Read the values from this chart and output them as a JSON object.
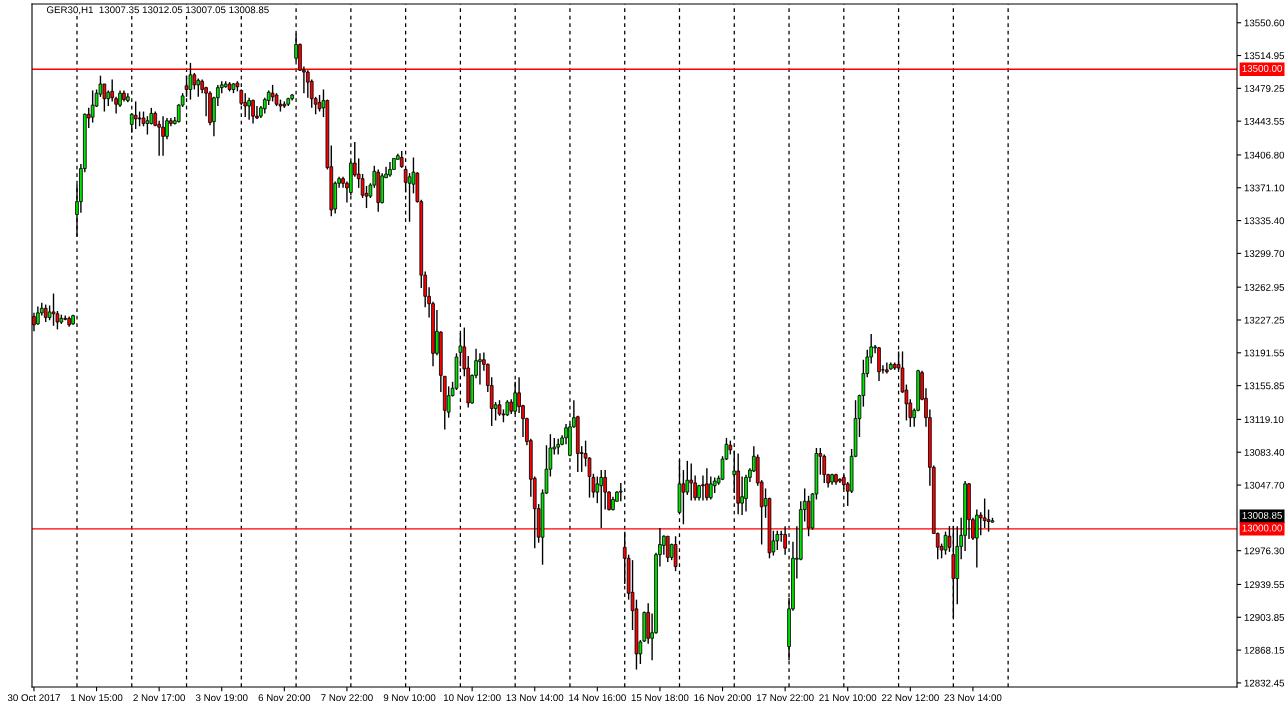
{
  "chart_data": {
    "type": "candlestick",
    "title": "GER30,H1  13007.35 13012.05 13007.05 13008.85",
    "annotations": [
      "13008.85"
    ],
    "categories": [
      "30 Oct 2017",
      null,
      null,
      null,
      null,
      null,
      null,
      null,
      null,
      null,
      null,
      null,
      null,
      null,
      null,
      null,
      "1 Nov 15:00",
      null,
      null,
      null,
      null,
      null,
      null,
      null,
      null,
      null,
      null,
      null,
      null,
      null,
      null,
      null,
      "2 Nov 17:00",
      null,
      null,
      null,
      null,
      null,
      null,
      null,
      null,
      null,
      null,
      null,
      null,
      null,
      null,
      null,
      "3 Nov 19:00",
      null,
      null,
      null,
      null,
      null,
      null,
      null,
      null,
      null,
      null,
      null,
      null,
      null,
      null,
      null,
      "6 Nov 20:00",
      null,
      null,
      null,
      null,
      null,
      null,
      null,
      null,
      null,
      null,
      null,
      null,
      null,
      null,
      null,
      "7 Nov 22:00",
      null,
      null,
      null,
      null,
      null,
      null,
      null,
      null,
      null,
      null,
      null,
      null,
      null,
      null,
      null,
      "9 Nov 10:00",
      null,
      null,
      null,
      null,
      null,
      null,
      null,
      null,
      null,
      null,
      null,
      null,
      null,
      null,
      null,
      "10 Nov 12:00",
      null,
      null,
      null,
      null,
      null,
      null,
      null,
      null,
      null,
      null,
      null,
      null,
      null,
      null,
      null,
      "13 Nov 14:00",
      null,
      null,
      null,
      null,
      null,
      null,
      null,
      null,
      null,
      null,
      null,
      null,
      null,
      null,
      null,
      "14 Nov 16:00",
      null,
      null,
      null,
      null,
      null,
      null,
      null,
      null,
      null,
      null,
      null,
      null,
      null,
      null,
      null,
      "15 Nov 18:00",
      null,
      null,
      null,
      null,
      null,
      null,
      null,
      null,
      null,
      null,
      null,
      null,
      null,
      null,
      null,
      "16 Nov 20:00",
      null,
      null,
      null,
      null,
      null,
      null,
      null,
      null,
      null,
      null,
      null,
      null,
      null,
      null,
      null,
      "17 Nov 22:00",
      null,
      null,
      null,
      null,
      null,
      null,
      null,
      null,
      null,
      null,
      null,
      null,
      null,
      null,
      null,
      "21 Nov 10:00",
      null,
      null,
      null,
      null,
      null,
      null,
      null,
      null,
      null,
      null,
      null,
      null,
      null,
      null,
      null,
      "22 Nov 12:00",
      null,
      null,
      null,
      null,
      null,
      null,
      null,
      null,
      null,
      null,
      null,
      null,
      null,
      null,
      null,
      "23 Nov 14:00",
      null,
      null,
      null,
      null,
      null,
      null,
      null,
      null,
      null,
      null,
      null,
      null,
      null,
      null,
      null,
      null,
      null,
      null,
      null,
      null,
      null,
      null,
      null,
      null,
      null,
      null,
      null,
      null,
      null,
      null,
      null,
      null,
      null,
      null,
      null,
      null,
      null,
      null,
      null,
      null,
      null,
      null,
      null,
      null,
      null,
      null,
      null,
      null,
      null,
      null,
      null,
      null,
      null,
      null,
      null,
      null,
      null,
      null,
      null,
      null,
      null,
      null,
      null,
      null,
      null,
      null,
      null
    ],
    "ohlc": [
      [
        13231,
        13235,
        13215,
        13222
      ],
      [
        13223,
        13242,
        13222,
        13235
      ],
      [
        13235,
        13246,
        13232,
        13240
      ],
      [
        13240,
        13244,
        13225,
        13230
      ],
      [
        13230,
        13243,
        13227,
        13236
      ],
      [
        13236,
        13256,
        13221,
        13234
      ],
      [
        13234,
        13237,
        13217,
        13225
      ],
      [
        13225,
        13233,
        13223,
        13229
      ],
      [
        13229,
        13232,
        13227,
        13228
      ],
      [
        13229,
        13231,
        13220,
        13222
      ],
      [
        13223,
        13233,
        13222,
        13232
      ],
      [
        13342,
        13375,
        13318,
        13356
      ],
      [
        13356,
        13397,
        13344,
        13392
      ],
      [
        13392,
        13452,
        13388,
        13451
      ],
      [
        13451,
        13458,
        13436,
        13447
      ],
      [
        13448,
        13477,
        13442,
        13461
      ],
      [
        13460,
        13478,
        13459,
        13474
      ],
      [
        13473,
        13493,
        13470,
        13484
      ],
      [
        13484,
        13484,
        13454,
        13468
      ],
      [
        13468,
        13477,
        13460,
        13475
      ],
      [
        13476,
        13489,
        13465,
        13469
      ],
      [
        13468,
        13470,
        13452,
        13462
      ],
      [
        13461,
        13477,
        13459,
        13474
      ],
      [
        13474,
        13477,
        13465,
        13467
      ],
      [
        13466,
        13474,
        13464,
        13470
      ],
      [
        13440,
        13452,
        13431,
        13451
      ],
      [
        13450,
        13465,
        13435,
        13446
      ],
      [
        13447,
        13454,
        13438,
        13446
      ],
      [
        13447,
        13454,
        13438,
        13441
      ],
      [
        13441,
        13449,
        13429,
        13444
      ],
      [
        13441,
        13458,
        13440,
        13452
      ],
      [
        13452,
        13454,
        13438,
        13439
      ],
      [
        13440,
        13444,
        13406,
        13437
      ],
      [
        13437,
        13449,
        13406,
        13427
      ],
      [
        13427,
        13447,
        13424,
        13444
      ],
      [
        13444,
        13447,
        13438,
        13441
      ],
      [
        13441,
        13448,
        13440,
        13444
      ],
      [
        13443,
        13462,
        13442,
        13461
      ],
      [
        13461,
        13474,
        13459,
        13471
      ],
      [
        13482,
        13493,
        13470,
        13478
      ],
      [
        13478,
        13507,
        13467,
        13494
      ],
      [
        13494,
        13496,
        13478,
        13483
      ],
      [
        13483,
        13490,
        13470,
        13488
      ],
      [
        13487,
        13489,
        13474,
        13478
      ],
      [
        13480,
        13481,
        13449,
        13474
      ],
      [
        13474,
        13476,
        13439,
        13442
      ],
      [
        13443,
        13470,
        13427,
        13469
      ],
      [
        13469,
        13483,
        13460,
        13480
      ],
      [
        13480,
        13487,
        13474,
        13483
      ],
      [
        13481,
        13487,
        13480,
        13484
      ],
      [
        13484,
        13486,
        13476,
        13478
      ],
      [
        13478,
        13485,
        13474,
        13484
      ],
      [
        13485,
        13487,
        13476,
        13481
      ],
      [
        13477,
        13478,
        13461,
        13463
      ],
      [
        13464,
        13474,
        13448,
        13460
      ],
      [
        13460,
        13469,
        13445,
        13466
      ],
      [
        13466,
        13467,
        13441,
        13449
      ],
      [
        13449,
        13460,
        13446,
        13447
      ],
      [
        13449,
        13460,
        13447,
        13458
      ],
      [
        13457,
        13469,
        13452,
        13467
      ],
      [
        13466,
        13477,
        13461,
        13475
      ],
      [
        13474,
        13483,
        13465,
        13470
      ],
      [
        13472,
        13474,
        13460,
        13462
      ],
      [
        13462,
        13467,
        13454,
        13460
      ],
      [
        13462,
        13465,
        13458,
        13460
      ],
      [
        13462,
        13469,
        13460,
        13468
      ],
      [
        13468,
        13473,
        13466,
        13472
      ],
      [
        13512,
        13539,
        13509,
        13527
      ],
      [
        13527,
        13528,
        13498,
        13499
      ],
      [
        13499,
        13503,
        13474,
        13497
      ],
      [
        13497,
        13499,
        13469,
        13486
      ],
      [
        13487,
        13489,
        13458,
        13468
      ],
      [
        13468,
        13470,
        13451,
        13462
      ],
      [
        13464,
        13472,
        13454,
        13457
      ],
      [
        13458,
        13478,
        13448,
        13466
      ],
      [
        13466,
        13467,
        13391,
        13393
      ],
      [
        13394,
        13417,
        13340,
        13347
      ],
      [
        13348,
        13378,
        13343,
        13376
      ],
      [
        13376,
        13383,
        13371,
        13381
      ],
      [
        13381,
        13383,
        13371,
        13376
      ],
      [
        13376,
        13378,
        13355,
        13371
      ],
      [
        13366,
        13400,
        13363,
        13398
      ],
      [
        13398,
        13421,
        13383,
        13385
      ],
      [
        13386,
        13403,
        13371,
        13381
      ],
      [
        13381,
        13386,
        13360,
        13363
      ],
      [
        13365,
        13373,
        13349,
        13362
      ],
      [
        13362,
        13376,
        13360,
        13374
      ],
      [
        13374,
        13395,
        13371,
        13389
      ],
      [
        13388,
        13391,
        13345,
        13355
      ],
      [
        13355,
        13387,
        13354,
        13384
      ],
      [
        13382,
        13394,
        13382,
        13386
      ],
      [
        13385,
        13399,
        13383,
        13391
      ],
      [
        13391,
        13403,
        13391,
        13403
      ],
      [
        13402,
        13408,
        13402,
        13406
      ],
      [
        13404,
        13411,
        13393,
        13394
      ],
      [
        13391,
        13392,
        13366,
        13377
      ],
      [
        13376,
        13387,
        13334,
        13383
      ],
      [
        13375,
        13404,
        13365,
        13388
      ],
      [
        13387,
        13388,
        13355,
        13356
      ],
      [
        13356,
        13358,
        13262,
        13276
      ],
      [
        13276,
        13280,
        13241,
        13253
      ],
      [
        13253,
        13263,
        13230,
        13245
      ],
      [
        13245,
        13247,
        13177,
        13191
      ],
      [
        13191,
        13238,
        13189,
        13215
      ],
      [
        13214,
        13215,
        13149,
        13167
      ],
      [
        13166,
        13166,
        13108,
        13129
      ],
      [
        13127,
        13155,
        13121,
        13145
      ],
      [
        13145,
        13160,
        13144,
        13153
      ],
      [
        13153,
        13191,
        13151,
        13187
      ],
      [
        13192,
        13213,
        13177,
        13199
      ],
      [
        13198,
        13219,
        13166,
        13174
      ],
      [
        13175,
        13188,
        13132,
        13137
      ],
      [
        13137,
        13168,
        13136,
        13167
      ],
      [
        13167,
        13196,
        13164,
        13183
      ],
      [
        13182,
        13191,
        13157,
        13184
      ],
      [
        13184,
        13192,
        13172,
        13179
      ],
      [
        13179,
        13180,
        13149,
        13156
      ],
      [
        13156,
        13165,
        13112,
        13131
      ],
      [
        13131,
        13138,
        13118,
        13135
      ],
      [
        13135,
        13140,
        13123,
        13125
      ],
      [
        13125,
        13130,
        13116,
        13124
      ],
      [
        13124,
        13140,
        13123,
        13138
      ],
      [
        13138,
        13141,
        13125,
        13128
      ],
      [
        13128,
        13160,
        13125,
        13148
      ],
      [
        13148,
        13165,
        13126,
        13133
      ],
      [
        13134,
        13135,
        13100,
        13120
      ],
      [
        13120,
        13121,
        13091,
        13095
      ],
      [
        13096,
        13098,
        13035,
        13054
      ],
      [
        13055,
        13057,
        12979,
        13022
      ],
      [
        13022,
        13027,
        12985,
        12991
      ],
      [
        12991,
        13043,
        12961,
        13039
      ],
      [
        13039,
        13091,
        13038,
        13065
      ],
      [
        13065,
        13103,
        13057,
        13088
      ],
      [
        13087,
        13099,
        13081,
        13089
      ],
      [
        13089,
        13098,
        13081,
        13092
      ],
      [
        13092,
        13102,
        13091,
        13099
      ],
      [
        13099,
        13114,
        13092,
        13110
      ],
      [
        13080,
        13114,
        13079,
        13111
      ],
      [
        13111,
        13140,
        13110,
        13121
      ],
      [
        13122,
        13123,
        13062,
        13082
      ],
      [
        13083,
        13090,
        13062,
        13082
      ],
      [
        13082,
        13096,
        13068,
        13077
      ],
      [
        13077,
        13078,
        13034,
        13057
      ],
      [
        13056,
        13060,
        13034,
        13040
      ],
      [
        13040,
        13057,
        13028,
        13049
      ],
      [
        13047,
        13064,
        13001,
        13056
      ],
      [
        13056,
        13064,
        13021,
        13040
      ],
      [
        13040,
        13041,
        13020,
        13021
      ],
      [
        13021,
        13035,
        13020,
        13032
      ],
      [
        13030,
        13041,
        13030,
        13040
      ],
      [
        13040,
        13050,
        13030,
        13041
      ],
      [
        12980,
        12997,
        12940,
        12968
      ],
      [
        12968,
        12972,
        12923,
        12930
      ],
      [
        12931,
        12966,
        12890,
        12911
      ],
      [
        12913,
        12923,
        12847,
        12864
      ],
      [
        12864,
        12879,
        12853,
        12877
      ],
      [
        12878,
        12910,
        12877,
        12909
      ],
      [
        12909,
        12919,
        12875,
        12881
      ],
      [
        12881,
        12908,
        12857,
        12887
      ],
      [
        12887,
        12974,
        12886,
        12972
      ],
      [
        12972,
        13001,
        12959,
        12983
      ],
      [
        12982,
        12993,
        12972,
        12992
      ],
      [
        12992,
        12992,
        12964,
        12969
      ],
      [
        12969,
        12984,
        12966,
        12983
      ],
      [
        12983,
        12992,
        12954,
        12959
      ],
      [
        13018,
        13075,
        13017,
        13049
      ],
      [
        13049,
        13064,
        13005,
        13040
      ],
      [
        13040,
        13074,
        13037,
        13053
      ],
      [
        13053,
        13071,
        13031,
        13050
      ],
      [
        13050,
        13058,
        13031,
        13034
      ],
      [
        13034,
        13048,
        13031,
        13047
      ],
      [
        13048,
        13058,
        13031,
        13047
      ],
      [
        13049,
        13066,
        13031,
        13034
      ],
      [
        13034,
        13057,
        13032,
        13049
      ],
      [
        13047,
        13056,
        13039,
        13052
      ],
      [
        13050,
        13058,
        13048,
        13055
      ],
      [
        13054,
        13079,
        13053,
        13076
      ],
      [
        13076,
        13099,
        13075,
        13092
      ],
      [
        13091,
        13096,
        13081,
        13086
      ],
      [
        13059,
        13085,
        13039,
        13063
      ],
      [
        13063,
        13082,
        13016,
        13028
      ],
      [
        13028,
        13057,
        13015,
        13035
      ],
      [
        13033,
        13059,
        13019,
        13056
      ],
      [
        13056,
        13066,
        13051,
        13064
      ],
      [
        13063,
        13090,
        13062,
        13079
      ],
      [
        13078,
        13081,
        13047,
        13050
      ],
      [
        13051,
        13053,
        12983,
        13024
      ],
      [
        13025,
        13044,
        13012,
        13033
      ],
      [
        13033,
        13034,
        12968,
        12974
      ],
      [
        12975,
        12998,
        12971,
        12987
      ],
      [
        12987,
        12998,
        12977,
        12994
      ],
      [
        12994,
        12998,
        12986,
        12994
      ],
      [
        12994,
        13003,
        12972,
        12979
      ],
      [
        12872,
        12925,
        12857,
        12913
      ],
      [
        12913,
        12986,
        12911,
        12968
      ],
      [
        12967,
        13003,
        12946,
        12968
      ],
      [
        12967,
        13030,
        12966,
        13021
      ],
      [
        13021,
        13044,
        13008,
        13030
      ],
      [
        13030,
        13036,
        12992,
        13001
      ],
      [
        13001,
        13039,
        12999,
        13038
      ],
      [
        13038,
        13088,
        13032,
        13082
      ],
      [
        13082,
        13088,
        13059,
        13079
      ],
      [
        13079,
        13081,
        13050,
        13059
      ],
      [
        13059,
        13060,
        13045,
        13050
      ],
      [
        13051,
        13060,
        13048,
        13059
      ],
      [
        13059,
        13060,
        13048,
        13051
      ],
      [
        13054,
        13055,
        13050,
        13052
      ],
      [
        13056,
        13059,
        13043,
        13048
      ],
      [
        13049,
        13051,
        13025,
        13041
      ],
      [
        13041,
        13087,
        13039,
        13079
      ],
      [
        13079,
        13140,
        13078,
        13120
      ],
      [
        13120,
        13146,
        13100,
        13145
      ],
      [
        13145,
        13184,
        13133,
        13169
      ],
      [
        13169,
        13195,
        13165,
        13187
      ],
      [
        13187,
        13212,
        13180,
        13198
      ],
      [
        13197,
        13200,
        13191,
        13198
      ],
      [
        13197,
        13198,
        13161,
        13171
      ],
      [
        13173,
        13178,
        13169,
        13173
      ],
      [
        13173,
        13181,
        13169,
        13171
      ],
      [
        13174,
        13181,
        13173,
        13179
      ],
      [
        13179,
        13181,
        13173,
        13175
      ],
      [
        13179,
        13193,
        13173,
        13175
      ],
      [
        13175,
        13193,
        13148,
        13149
      ],
      [
        13151,
        13157,
        13118,
        13136
      ],
      [
        13137,
        13141,
        13111,
        13121
      ],
      [
        13121,
        13131,
        13111,
        13129
      ],
      [
        13129,
        13173,
        13128,
        13172
      ],
      [
        13170,
        13172,
        13140,
        13141
      ],
      [
        13142,
        13153,
        13111,
        13121
      ],
      [
        13121,
        13130,
        13047,
        13067
      ],
      [
        13067,
        13069,
        12995,
        12995
      ],
      [
        12995,
        12996,
        12967,
        12980
      ],
      [
        12981,
        12984,
        12968,
        12977
      ],
      [
        12977,
        12997,
        12972,
        12993
      ],
      [
        12992,
        13003,
        12975,
        12980
      ],
      [
        12972,
        13003,
        12903,
        12946
      ],
      [
        12946,
        13003,
        12918,
        12981
      ],
      [
        12981,
        13012,
        12967,
        12993
      ],
      [
        12993,
        13052,
        12976,
        13049
      ],
      [
        13049,
        13050,
        12989,
        13010
      ],
      [
        13010,
        13012,
        12988,
        12990
      ],
      [
        12990,
        13021,
        12958,
        13015
      ],
      [
        13015,
        13018,
        12993,
        13012
      ],
      [
        13012,
        13033,
        13001,
        13009
      ],
      [
        13010,
        13021,
        12997,
        13008
      ],
      [
        13007.35,
        13012.05,
        13007.05,
        13008.85
      ],
      null,
      null,
      null,
      null,
      null,
      null,
      null,
      null,
      null,
      null,
      null,
      null,
      null,
      null,
      null,
      null,
      null,
      null,
      null,
      null,
      null,
      null,
      null,
      null,
      null,
      null,
      null,
      null,
      null,
      null,
      null,
      null,
      null,
      null,
      null,
      null,
      null,
      null,
      null,
      null,
      null,
      null,
      null,
      null,
      null,
      null,
      null,
      null,
      null,
      null,
      null,
      null,
      null,
      null,
      null,
      null,
      null,
      null,
      null,
      null,
      null,
      null
    ],
    "ylim": [
      12828,
      13571
    ],
    "yticks": [
      {
        "value": 13550.6,
        "label": "13550.60"
      },
      {
        "value": 13514.95,
        "label": "13514.95"
      },
      {
        "value": 13479.25,
        "label": "13479.25"
      },
      {
        "value": 13443.55,
        "label": "13443.55"
      },
      {
        "value": 13406.8,
        "label": "13406.80"
      },
      {
        "value": 13371.1,
        "label": "13371.10"
      },
      {
        "value": 13335.4,
        "label": "13335.40"
      },
      {
        "value": 13299.7,
        "label": "13299.70"
      },
      {
        "value": 13262.95,
        "label": "13262.95"
      },
      {
        "value": 13227.25,
        "label": "13227.25"
      },
      {
        "value": 13191.55,
        "label": "13191.55"
      },
      {
        "value": 13155.85,
        "label": "13155.85"
      },
      {
        "value": 13119.1,
        "label": "13119.10"
      },
      {
        "value": 13083.4,
        "label": "13083.40"
      },
      {
        "value": 13047.7,
        "label": "13047.70"
      },
      {
        "value": 12976.3,
        "label": "12976.30"
      },
      {
        "value": 12939.55,
        "label": "12939.55"
      },
      {
        "value": 12903.85,
        "label": "12903.85"
      },
      {
        "value": 12868.15,
        "label": "12868.15"
      },
      {
        "value": 12832.45,
        "label": "12832.45"
      }
    ],
    "ref_lines": [
      {
        "axis": "y",
        "value": 13500,
        "label": "13500.00",
        "color": "#ff0000"
      },
      {
        "axis": "y",
        "value": 13000,
        "label": "13000.00",
        "color": "#ff0000"
      }
    ]
  }
}
